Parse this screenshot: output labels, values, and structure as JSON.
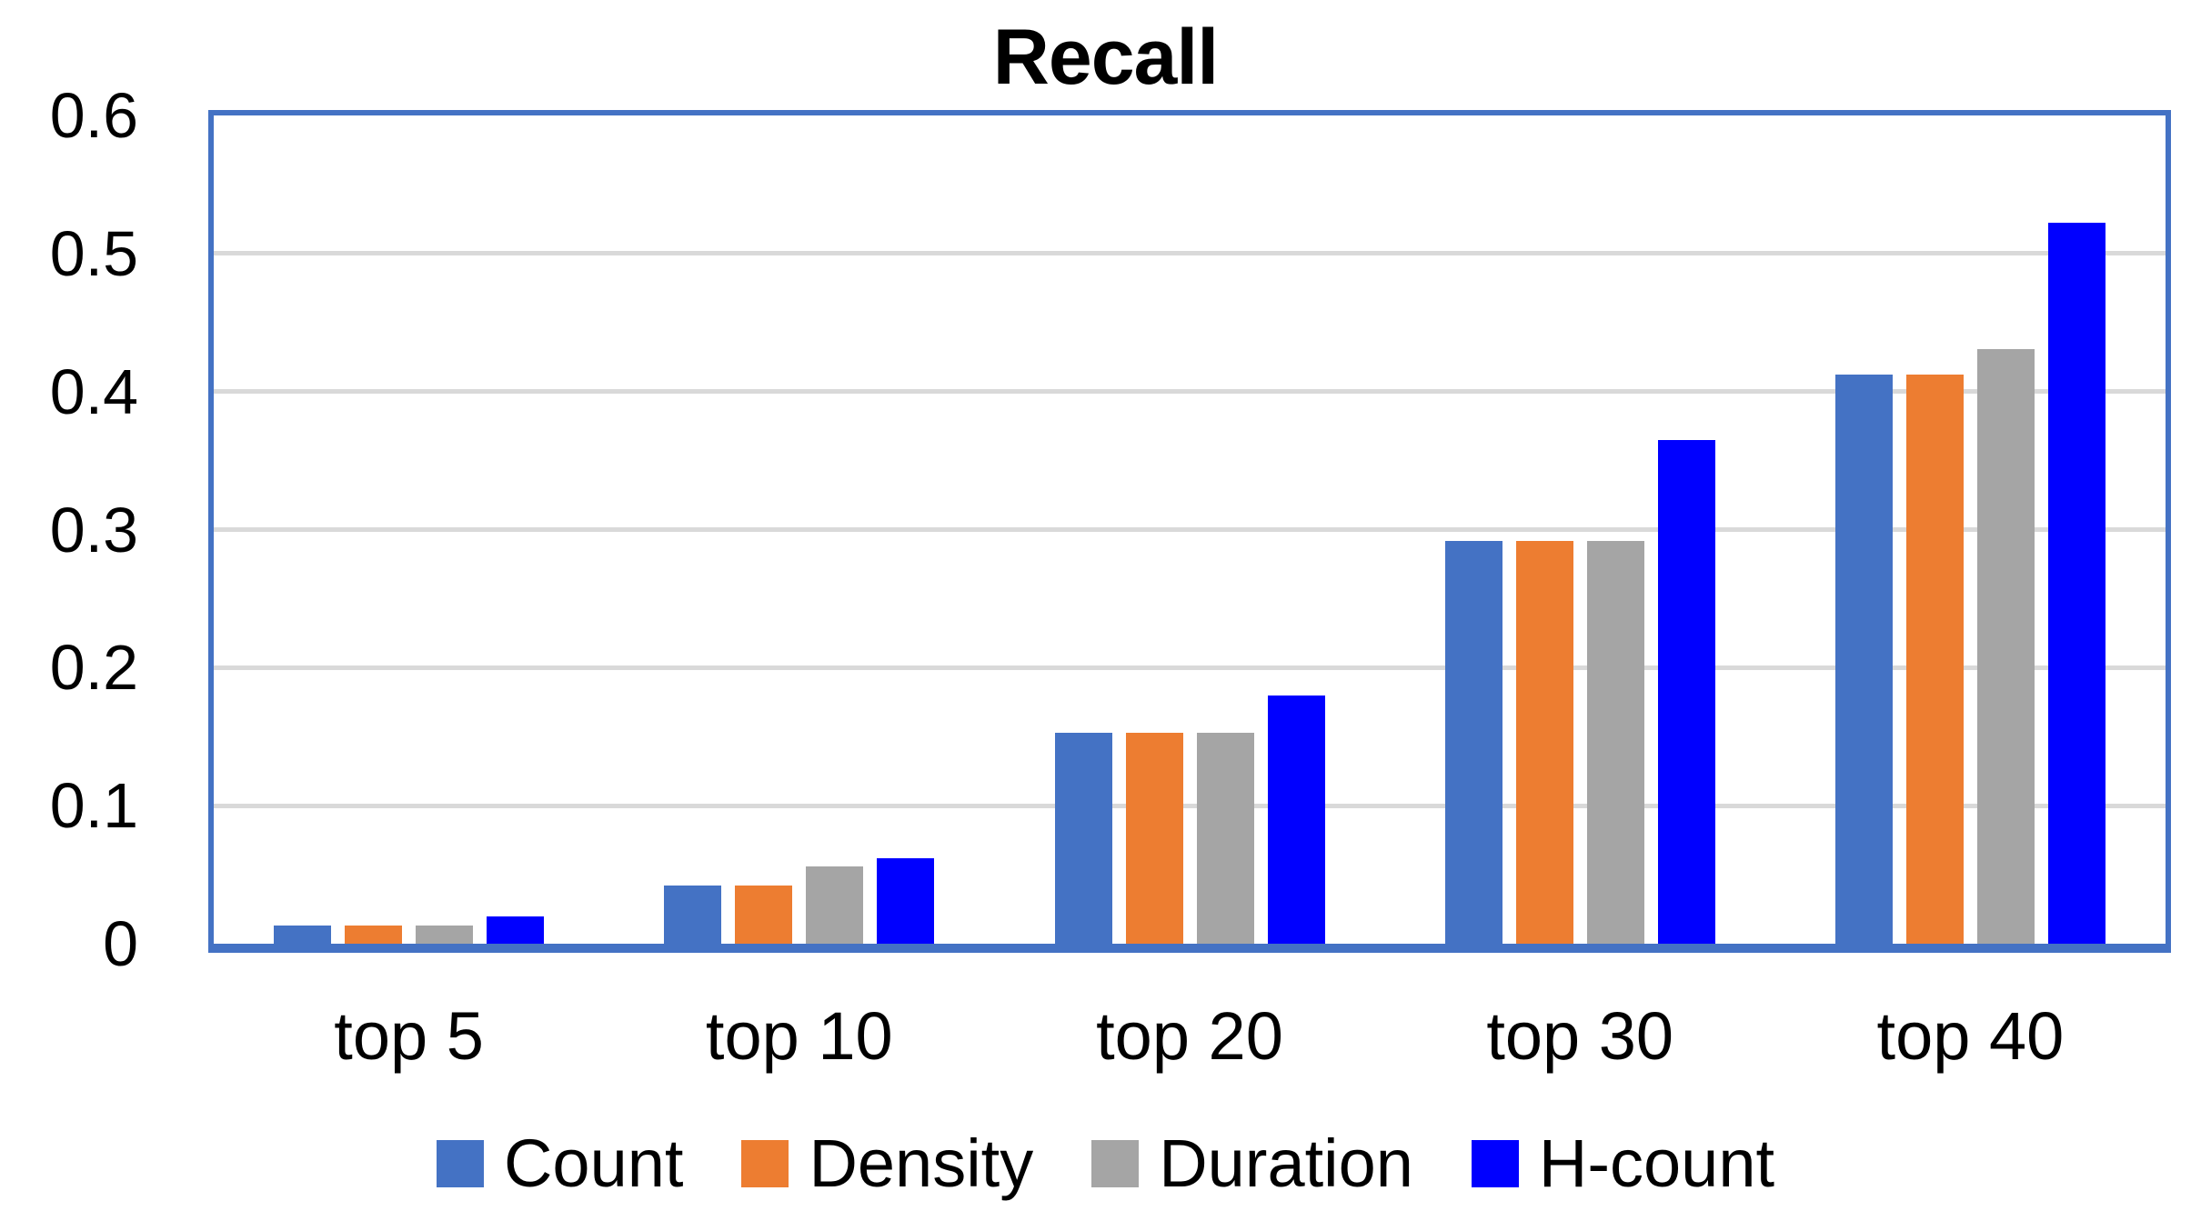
{
  "chart_data": {
    "type": "bar",
    "title": "Recall",
    "categories": [
      "top 5",
      "top 10",
      "top 20",
      "top 30",
      "top 40"
    ],
    "series": [
      {
        "name": "Count",
        "color": "#4472C4",
        "values": [
          0.013,
          0.042,
          0.153,
          0.292,
          0.412
        ]
      },
      {
        "name": "Density",
        "color": "#ED7D31",
        "values": [
          0.013,
          0.042,
          0.153,
          0.292,
          0.412
        ]
      },
      {
        "name": "Duration",
        "color": "#A5A5A5",
        "values": [
          0.013,
          0.056,
          0.153,
          0.292,
          0.431
        ]
      },
      {
        "name": "H-count",
        "color": "#0000FF",
        "values": [
          0.02,
          0.062,
          0.18,
          0.365,
          0.522
        ]
      }
    ],
    "xlabel": "",
    "ylabel": "",
    "ylim": [
      0,
      0.6
    ],
    "yticks": [
      0,
      0.1,
      0.2,
      0.3,
      0.4,
      0.5,
      0.6
    ],
    "ytick_labels": [
      "0",
      "0.1",
      "0.2",
      "0.3",
      "0.4",
      "0.5",
      "0.6"
    ],
    "grid": true,
    "gridline_ticks": [
      0.1,
      0.2,
      0.3,
      0.4,
      0.5
    ],
    "legend_position": "bottom",
    "colors": {
      "axis_border": "#4472C4",
      "gridline": "#D9D9D9",
      "text": "#000000",
      "background": "#FFFFFF"
    }
  }
}
